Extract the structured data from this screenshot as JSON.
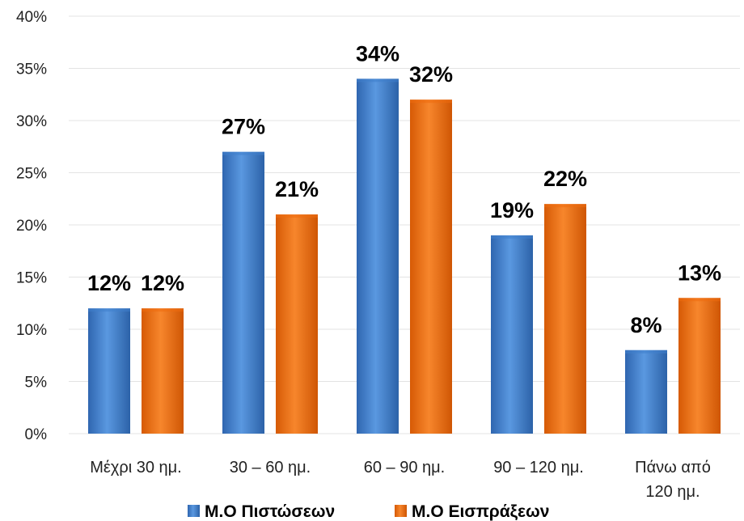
{
  "chart_data": {
    "type": "bar",
    "title": "",
    "xlabel": "",
    "ylabel": "",
    "categories": [
      [
        "Μέχρι 30 ημ."
      ],
      [
        "30 – 60 ημ."
      ],
      [
        "60 – 90 ημ."
      ],
      [
        "90 – 120 ημ."
      ],
      [
        "Πάνω από",
        "120 ημ."
      ]
    ],
    "series": [
      {
        "name": "Μ.Ο Πιστώσεων",
        "color": "#3f7fcc",
        "values": [
          12,
          27,
          34,
          19,
          8
        ]
      },
      {
        "name": "Μ.Ο Εισπράξεων",
        "color": "#ee6c0e",
        "values": [
          12,
          21,
          32,
          22,
          13
        ]
      }
    ],
    "ylim": [
      0,
      40
    ],
    "yticks": [
      0,
      5,
      10,
      15,
      20,
      25,
      30,
      35,
      40
    ],
    "value_suffix": "%",
    "grid": true,
    "legend_position": "bottom"
  }
}
